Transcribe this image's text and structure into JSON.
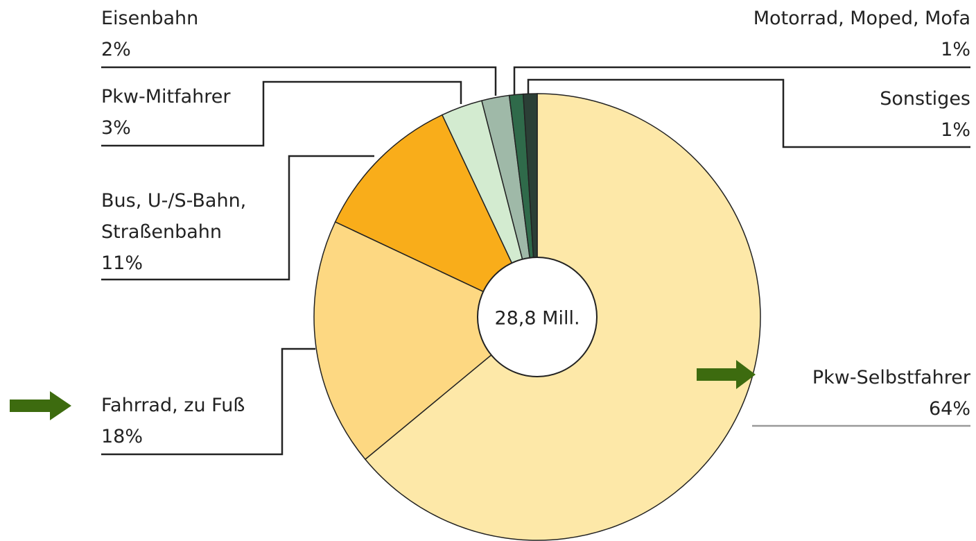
{
  "chart_data": {
    "type": "pie",
    "center_label": "28,8 Mill.",
    "categories": [
      "Pkw-Selbstfahrer",
      "Fahrrad, zu Fuß",
      "Bus, U-/S-Bahn, Straßenbahn",
      "Pkw-Mitfahrer",
      "Eisenbahn",
      "Motorrad, Moped, Mofa",
      "Sonstiges"
    ],
    "values": [
      64,
      18,
      11,
      3,
      2,
      1,
      1
    ],
    "value_labels": [
      "64%",
      "18%",
      "11%",
      "3%",
      "2%",
      "1%",
      "1%"
    ],
    "colors": [
      "#fde8a8",
      "#fdd882",
      "#f9ad1a",
      "#d3ebd0",
      "#9fb9a8",
      "#2f6a4a",
      "#2b3f36"
    ]
  }
}
